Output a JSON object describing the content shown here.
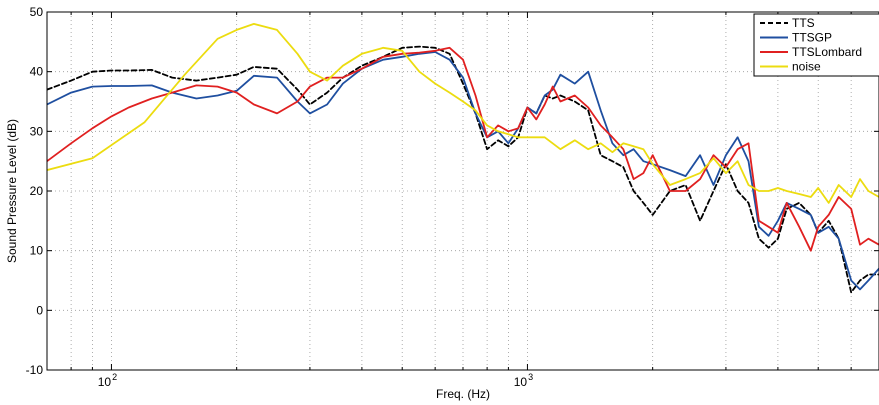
{
  "chart_data": {
    "type": "line",
    "xscale": "log",
    "xlabel": "Freq. (Hz)",
    "ylabel": "Sound Pressure Level (dB)",
    "xlim": [
      70,
      7000
    ],
    "ylim": [
      -10,
      50
    ],
    "yticks": [
      -10,
      0,
      10,
      20,
      30,
      40,
      50
    ],
    "xticks": [
      {
        "value": 100,
        "base": "10",
        "exp": "2"
      },
      {
        "value": 1000,
        "base": "10",
        "exp": "3"
      }
    ],
    "grid": true,
    "legend_position": "top-right",
    "series": [
      {
        "name": "TTS",
        "color": "#000000",
        "dash": "5 3",
        "x": [
          70,
          80,
          90,
          100,
          110,
          125,
          140,
          160,
          180,
          200,
          220,
          250,
          280,
          300,
          330,
          360,
          400,
          450,
          500,
          550,
          600,
          650,
          700,
          750,
          800,
          850,
          900,
          950,
          1000,
          1050,
          1100,
          1150,
          1200,
          1300,
          1400,
          1500,
          1600,
          1700,
          1800,
          1900,
          2000,
          2200,
          2400,
          2600,
          2800,
          3000,
          3200,
          3400,
          3600,
          3800,
          4000,
          4200,
          4500,
          4800,
          5000,
          5300,
          5600,
          6000,
          6300,
          6600,
          7000
        ],
        "y": [
          37,
          38.5,
          40,
          40.2,
          40.2,
          40.3,
          39,
          38.5,
          39,
          39.5,
          40.8,
          40.5,
          37,
          34.5,
          36.5,
          39,
          41,
          42.5,
          44,
          44.2,
          44,
          43,
          38,
          33,
          27,
          28.5,
          27.5,
          29,
          34,
          33,
          36,
          35.5,
          36,
          35,
          33.5,
          26,
          25,
          24,
          20,
          18,
          16,
          20,
          21,
          15,
          20,
          24.5,
          20,
          18,
          12,
          10.5,
          12,
          17,
          18,
          16,
          13,
          15,
          12,
          3,
          5,
          6,
          6
        ]
      },
      {
        "name": "TTSGP",
        "color": "#1f4fa0",
        "x": [
          70,
          80,
          90,
          100,
          110,
          125,
          140,
          160,
          180,
          200,
          220,
          250,
          280,
          300,
          330,
          360,
          400,
          450,
          500,
          550,
          600,
          650,
          700,
          750,
          800,
          850,
          900,
          950,
          1000,
          1050,
          1100,
          1150,
          1200,
          1300,
          1400,
          1500,
          1600,
          1700,
          1800,
          1900,
          2000,
          2200,
          2400,
          2600,
          2800,
          3000,
          3200,
          3400,
          3600,
          3800,
          4000,
          4200,
          4500,
          4800,
          5000,
          5300,
          5600,
          6000,
          6300,
          6600,
          7000
        ],
        "y": [
          34.5,
          36.5,
          37.5,
          37.6,
          37.6,
          37.7,
          36.5,
          35.5,
          36,
          36.8,
          39.3,
          39,
          35,
          33,
          34.5,
          38,
          40.5,
          42,
          42.5,
          43,
          43.3,
          42,
          39,
          33,
          29,
          30,
          28,
          30.5,
          34,
          33,
          36,
          37,
          39.5,
          38,
          40,
          33.5,
          28,
          26,
          27,
          25,
          24.5,
          23.5,
          22.5,
          26,
          21,
          26,
          29,
          25,
          14,
          12.5,
          15,
          18,
          17,
          16,
          13,
          14,
          12,
          5,
          3.5,
          5,
          7
        ]
      },
      {
        "name": "TTSLombard",
        "color": "#e02020",
        "x": [
          70,
          80,
          90,
          100,
          110,
          125,
          140,
          160,
          180,
          200,
          220,
          250,
          280,
          300,
          330,
          360,
          400,
          450,
          500,
          550,
          600,
          650,
          700,
          750,
          800,
          850,
          900,
          950,
          1000,
          1050,
          1100,
          1150,
          1200,
          1300,
          1400,
          1500,
          1600,
          1700,
          1800,
          1900,
          2000,
          2200,
          2400,
          2600,
          2800,
          3000,
          3200,
          3400,
          3600,
          3800,
          4000,
          4200,
          4500,
          4800,
          5000,
          5300,
          5600,
          6000,
          6300,
          6600,
          7000
        ],
        "y": [
          25,
          28,
          30.5,
          32.5,
          34,
          35.5,
          36.5,
          37.7,
          37.5,
          36.5,
          34.5,
          33,
          35,
          37.5,
          39,
          39,
          40.5,
          42.5,
          43,
          43.2,
          43.5,
          44,
          42,
          36,
          29,
          31,
          30,
          30.5,
          34,
          32,
          34.5,
          37.5,
          35,
          36,
          34,
          31,
          29,
          27,
          22,
          23,
          26,
          20,
          20,
          22,
          26,
          24,
          27,
          28,
          15,
          14,
          13,
          18,
          14,
          10,
          14,
          16,
          19,
          17,
          11,
          12,
          11
        ]
      },
      {
        "name": "noise",
        "color": "#ecdc10",
        "x": [
          70,
          90,
          120,
          150,
          180,
          200,
          220,
          250,
          280,
          300,
          330,
          360,
          400,
          450,
          500,
          550,
          600,
          650,
          700,
          750,
          800,
          850,
          900,
          950,
          1000,
          1100,
          1200,
          1300,
          1400,
          1500,
          1600,
          1700,
          1800,
          1900,
          2000,
          2200,
          2400,
          2600,
          2800,
          3000,
          3200,
          3400,
          3600,
          3800,
          4000,
          4200,
          4500,
          4800,
          5000,
          5300,
          5600,
          6000,
          6300,
          6600,
          7000
        ],
        "y": [
          23.5,
          25.5,
          31.5,
          39.5,
          45.5,
          47,
          48,
          47,
          43,
          40,
          38.5,
          41,
          43,
          44,
          43.5,
          40,
          38,
          36.5,
          35,
          33.5,
          31,
          30,
          29.5,
          29,
          29,
          29,
          27,
          28.5,
          27,
          28,
          26.5,
          28,
          27.5,
          27,
          24.5,
          21,
          22,
          23,
          25.5,
          23,
          25,
          21,
          20,
          20,
          20.5,
          20,
          19.5,
          19,
          20.5,
          18,
          21,
          19,
          22,
          20,
          19
        ]
      }
    ]
  }
}
